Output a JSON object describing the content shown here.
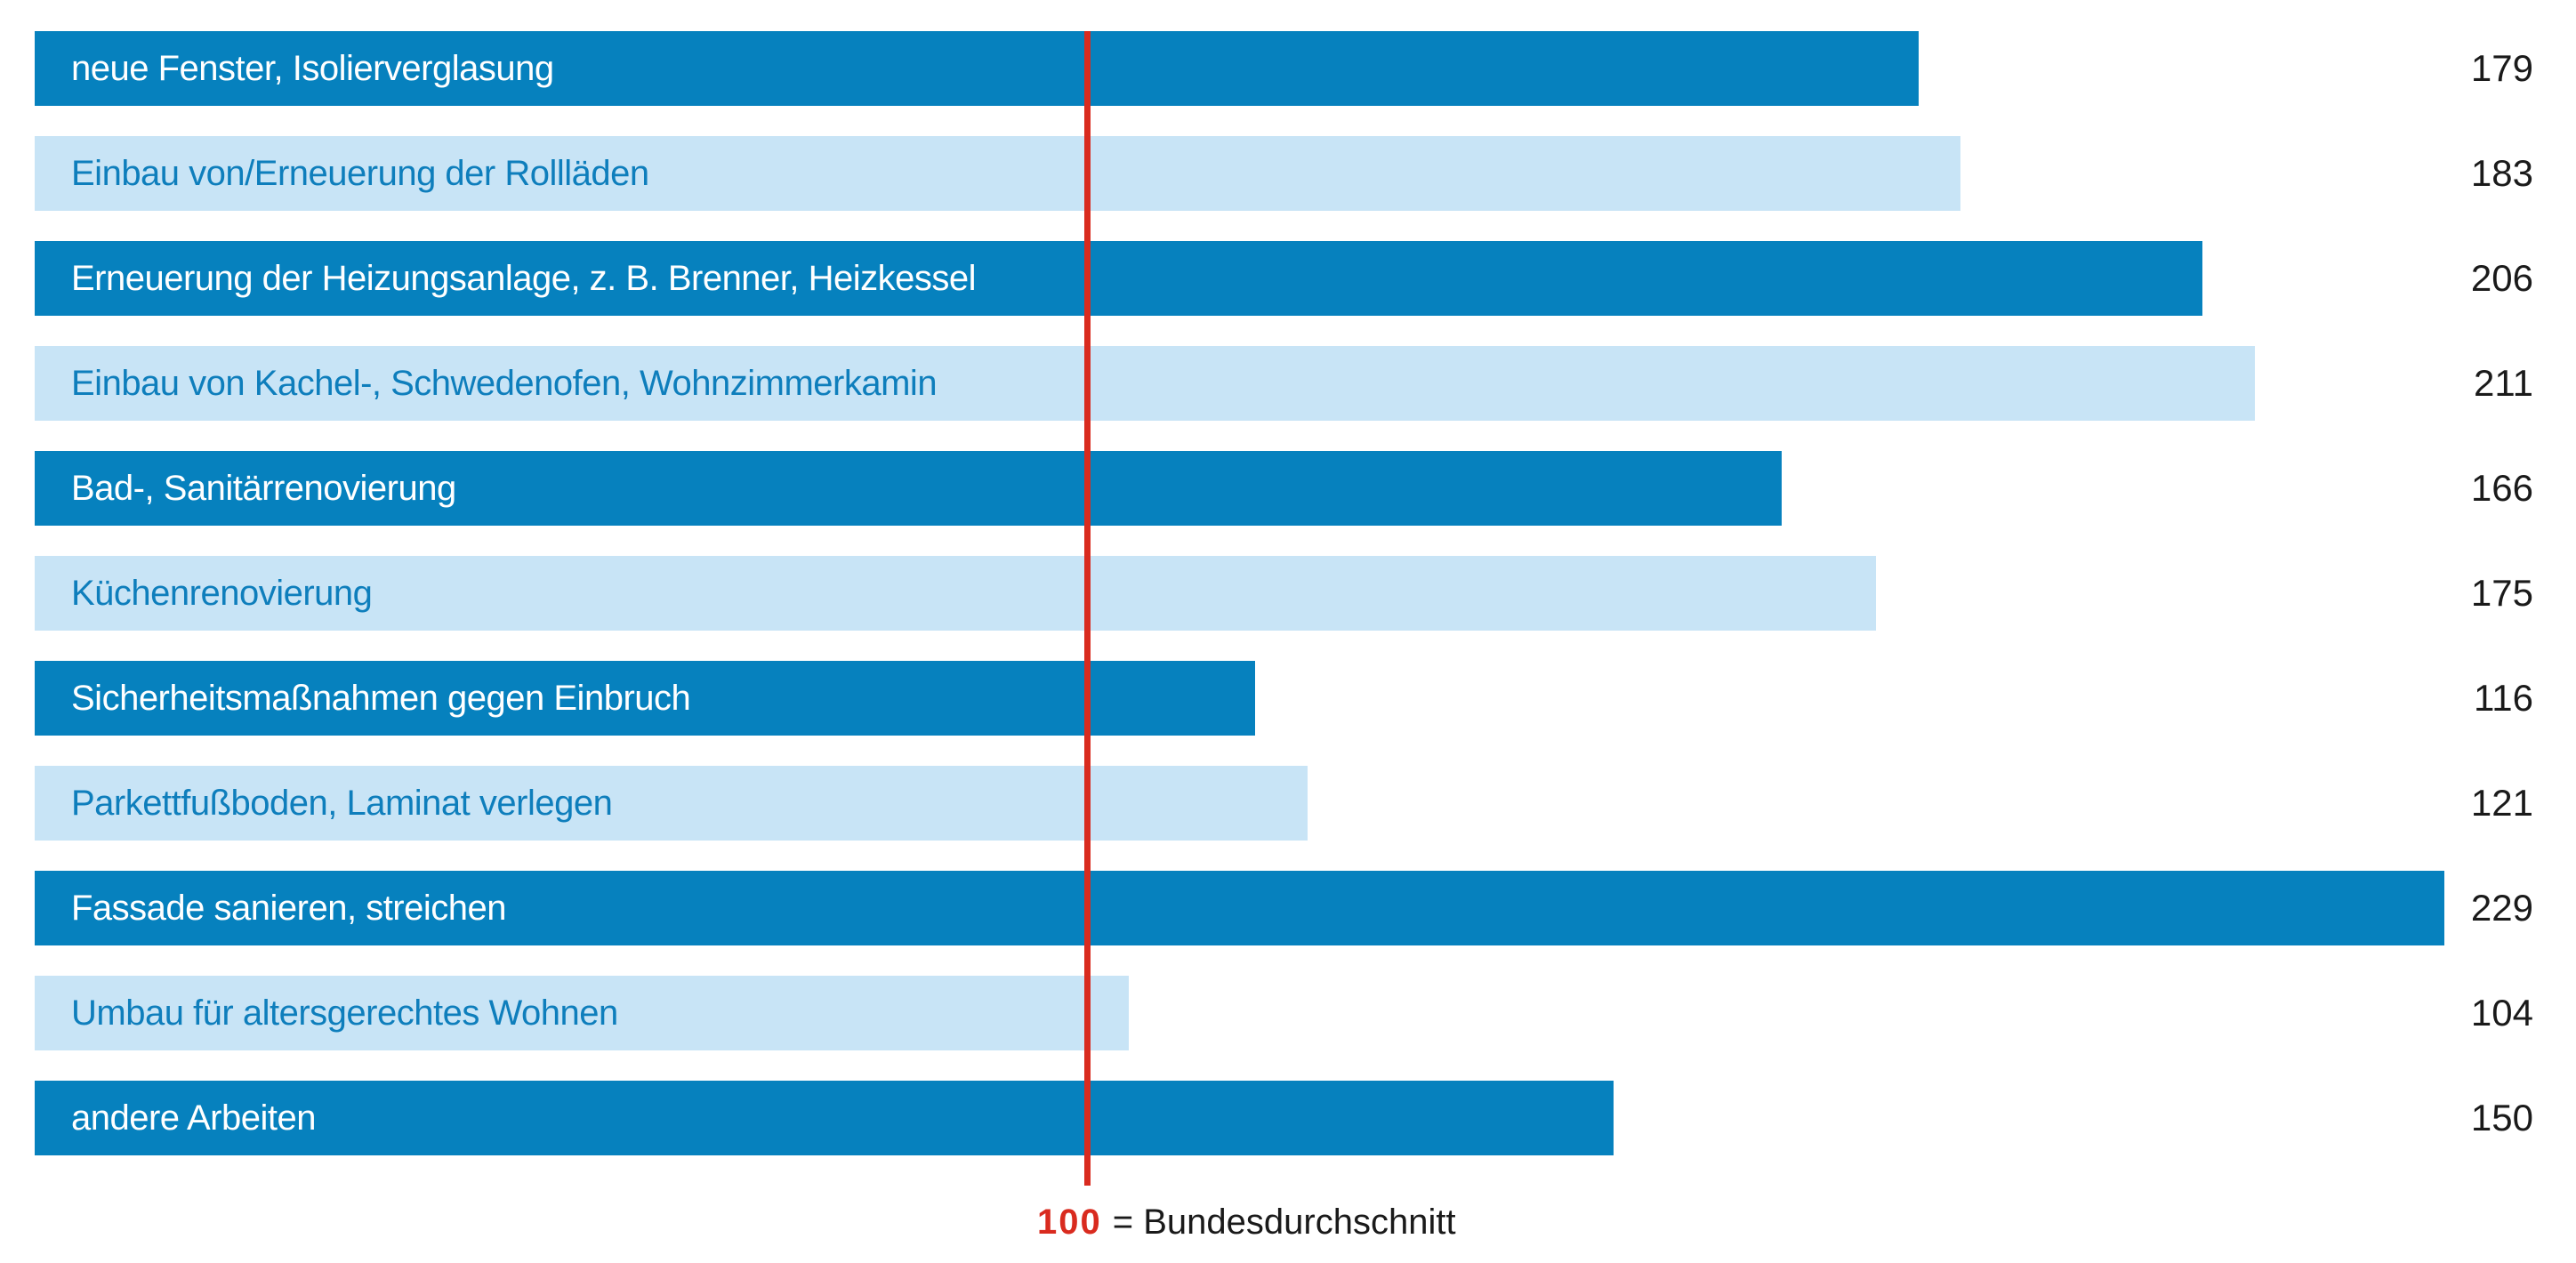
{
  "chart_data": {
    "type": "bar",
    "orientation": "horizontal",
    "grid": false,
    "xlim": [
      0,
      241
    ],
    "categories": [
      "neue Fenster, Isolierverglasung",
      "Einbau von/Erneuerung der Rollläden",
      "Erneuerung der Heizungsanlage, z. B. Brenner, Heizkessel",
      "Einbau von Kachel-, Schwedenofen, Wohnzimmerkamin",
      "Bad-, Sanitärrenovierung",
      "Küchenrenovierung",
      "Sicherheitsmaßnahmen gegen Einbruch",
      "Parkettfußboden, Laminat verlegen",
      "Fassade sanieren, streichen",
      "Umbau für altersgerechtes Wohnen",
      "andere Arbeiten"
    ],
    "values": [
      179,
      183,
      206,
      211,
      166,
      175,
      116,
      121,
      229,
      104,
      150
    ],
    "rows": [
      {
        "label": "neue Fenster, Isolierverglasung",
        "value": 179
      },
      {
        "label": "Einbau von/Erneuerung der Rollläden",
        "value": 183
      },
      {
        "label": "Erneuerung der Heizungsanlage, z. B. Brenner, Heizkessel",
        "value": 206
      },
      {
        "label": "Einbau von Kachel-, Schwedenofen, Wohnzimmerkamin",
        "value": 211
      },
      {
        "label": "Bad-, Sanitärrenovierung",
        "value": 166
      },
      {
        "label": "Küchenrenovierung",
        "value": 175
      },
      {
        "label": "Sicherheitsmaßnahmen gegen Einbruch",
        "value": 116
      },
      {
        "label": "Parkettfußboden, Laminat verlegen",
        "value": 121
      },
      {
        "label": "Fassade sanieren, streichen",
        "value": 229
      },
      {
        "label": "Umbau für altersgerechtes Wohnen",
        "value": 104
      },
      {
        "label": "andere Arbeiten",
        "value": 150
      }
    ],
    "reference": {
      "value": "100",
      "label": "= Bundesdurchschnitt",
      "numeric": 100
    },
    "colors": {
      "bar_dark": "#0681BE",
      "bar_light": "#C8E4F6",
      "label_on_dark": "#FFFFFF",
      "label_on_light": "#0E7EBC",
      "reference_line": "#D92B1F",
      "value_text": "#1A1A1A"
    }
  }
}
